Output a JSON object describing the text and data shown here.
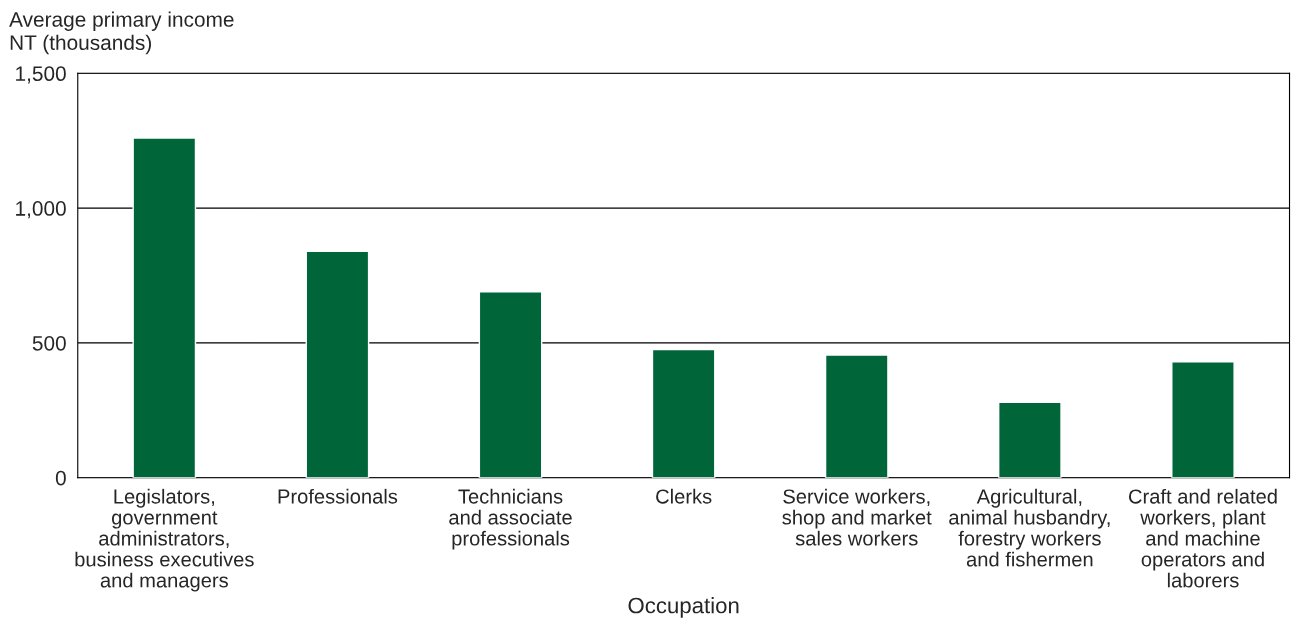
{
  "chart_data": {
    "type": "bar",
    "ylabel": "Average primary income\nNT (thousands)",
    "xlabel": "Occupation",
    "categories": [
      "Legislators,\ngovernment\nadministrators,\nbusiness executives\nand managers",
      "Professionals",
      "Technicians\nand associate\nprofessionals",
      "Clerks",
      "Service workers,\nshop and market\nsales workers",
      "Agricultural,\nanimal husbandry,\nforestry workers\nand fishermen",
      "Craft and related\nworkers, plant\nand machine\noperators and\nlaborers"
    ],
    "values": [
      1260,
      840,
      690,
      475,
      455,
      280,
      430
    ],
    "color": "#00663a",
    "ylim": [
      0,
      1500
    ],
    "yticks": [
      0,
      {
        "value": 500,
        "label": "500"
      },
      {
        "value": 1000,
        "label": "1,000"
      },
      {
        "value": 1500,
        "label": "1,500"
      }
    ],
    "grid": "y",
    "legend": false
  }
}
